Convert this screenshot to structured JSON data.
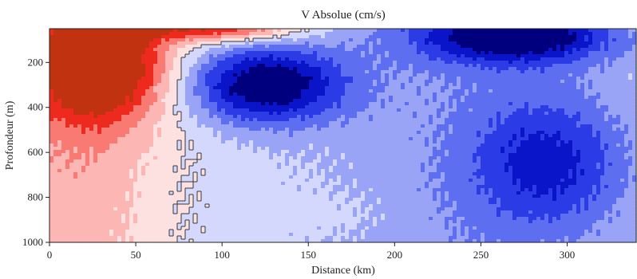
{
  "chart_data": {
    "type": "heatmap",
    "title": "V Absolue (cm/s)",
    "xlabel": "Distance (km)",
    "ylabel": "Profondeur (m)",
    "xlim": [
      0,
      340
    ],
    "ylim": [
      1000,
      50
    ],
    "x_ticks": [
      0,
      50,
      100,
      150,
      200,
      250,
      300
    ],
    "y_ticks": [
      200,
      400,
      600,
      800,
      1000
    ],
    "colorscale": [
      "#00007f",
      "#0a14c8",
      "#2b3ce6",
      "#5e6ef0",
      "#9aa4f6",
      "#d3d8fc",
      "#fde0e0",
      "#fcb6b4",
      "#f87a72",
      "#ee2a1e",
      "#c03210"
    ],
    "levels_cm_s": [
      -25,
      -20,
      -15,
      -10,
      -5,
      0,
      5,
      10,
      15,
      20,
      25
    ],
    "zero_contour_color": "#3a3a3a",
    "features": [
      {
        "kind": "positive core",
        "x_km": 30,
        "depth_m": 220,
        "peak_cm_s": 26
      },
      {
        "kind": "positive surface jet",
        "x_km": 100,
        "depth_m": 50,
        "peak_cm_s": 22
      },
      {
        "kind": "negative core",
        "x_km": 125,
        "depth_m": 300,
        "peak_cm_s": -28
      },
      {
        "kind": "negative surface core",
        "x_km": 270,
        "depth_m": 80,
        "peak_cm_s": -27
      },
      {
        "kind": "negative deep band",
        "x_km": 290,
        "depth_m": 650,
        "peak_cm_s": -16
      },
      {
        "kind": "weak positive deep",
        "x_km": 165,
        "depth_m": 870,
        "peak_cm_s": 2
      }
    ]
  }
}
